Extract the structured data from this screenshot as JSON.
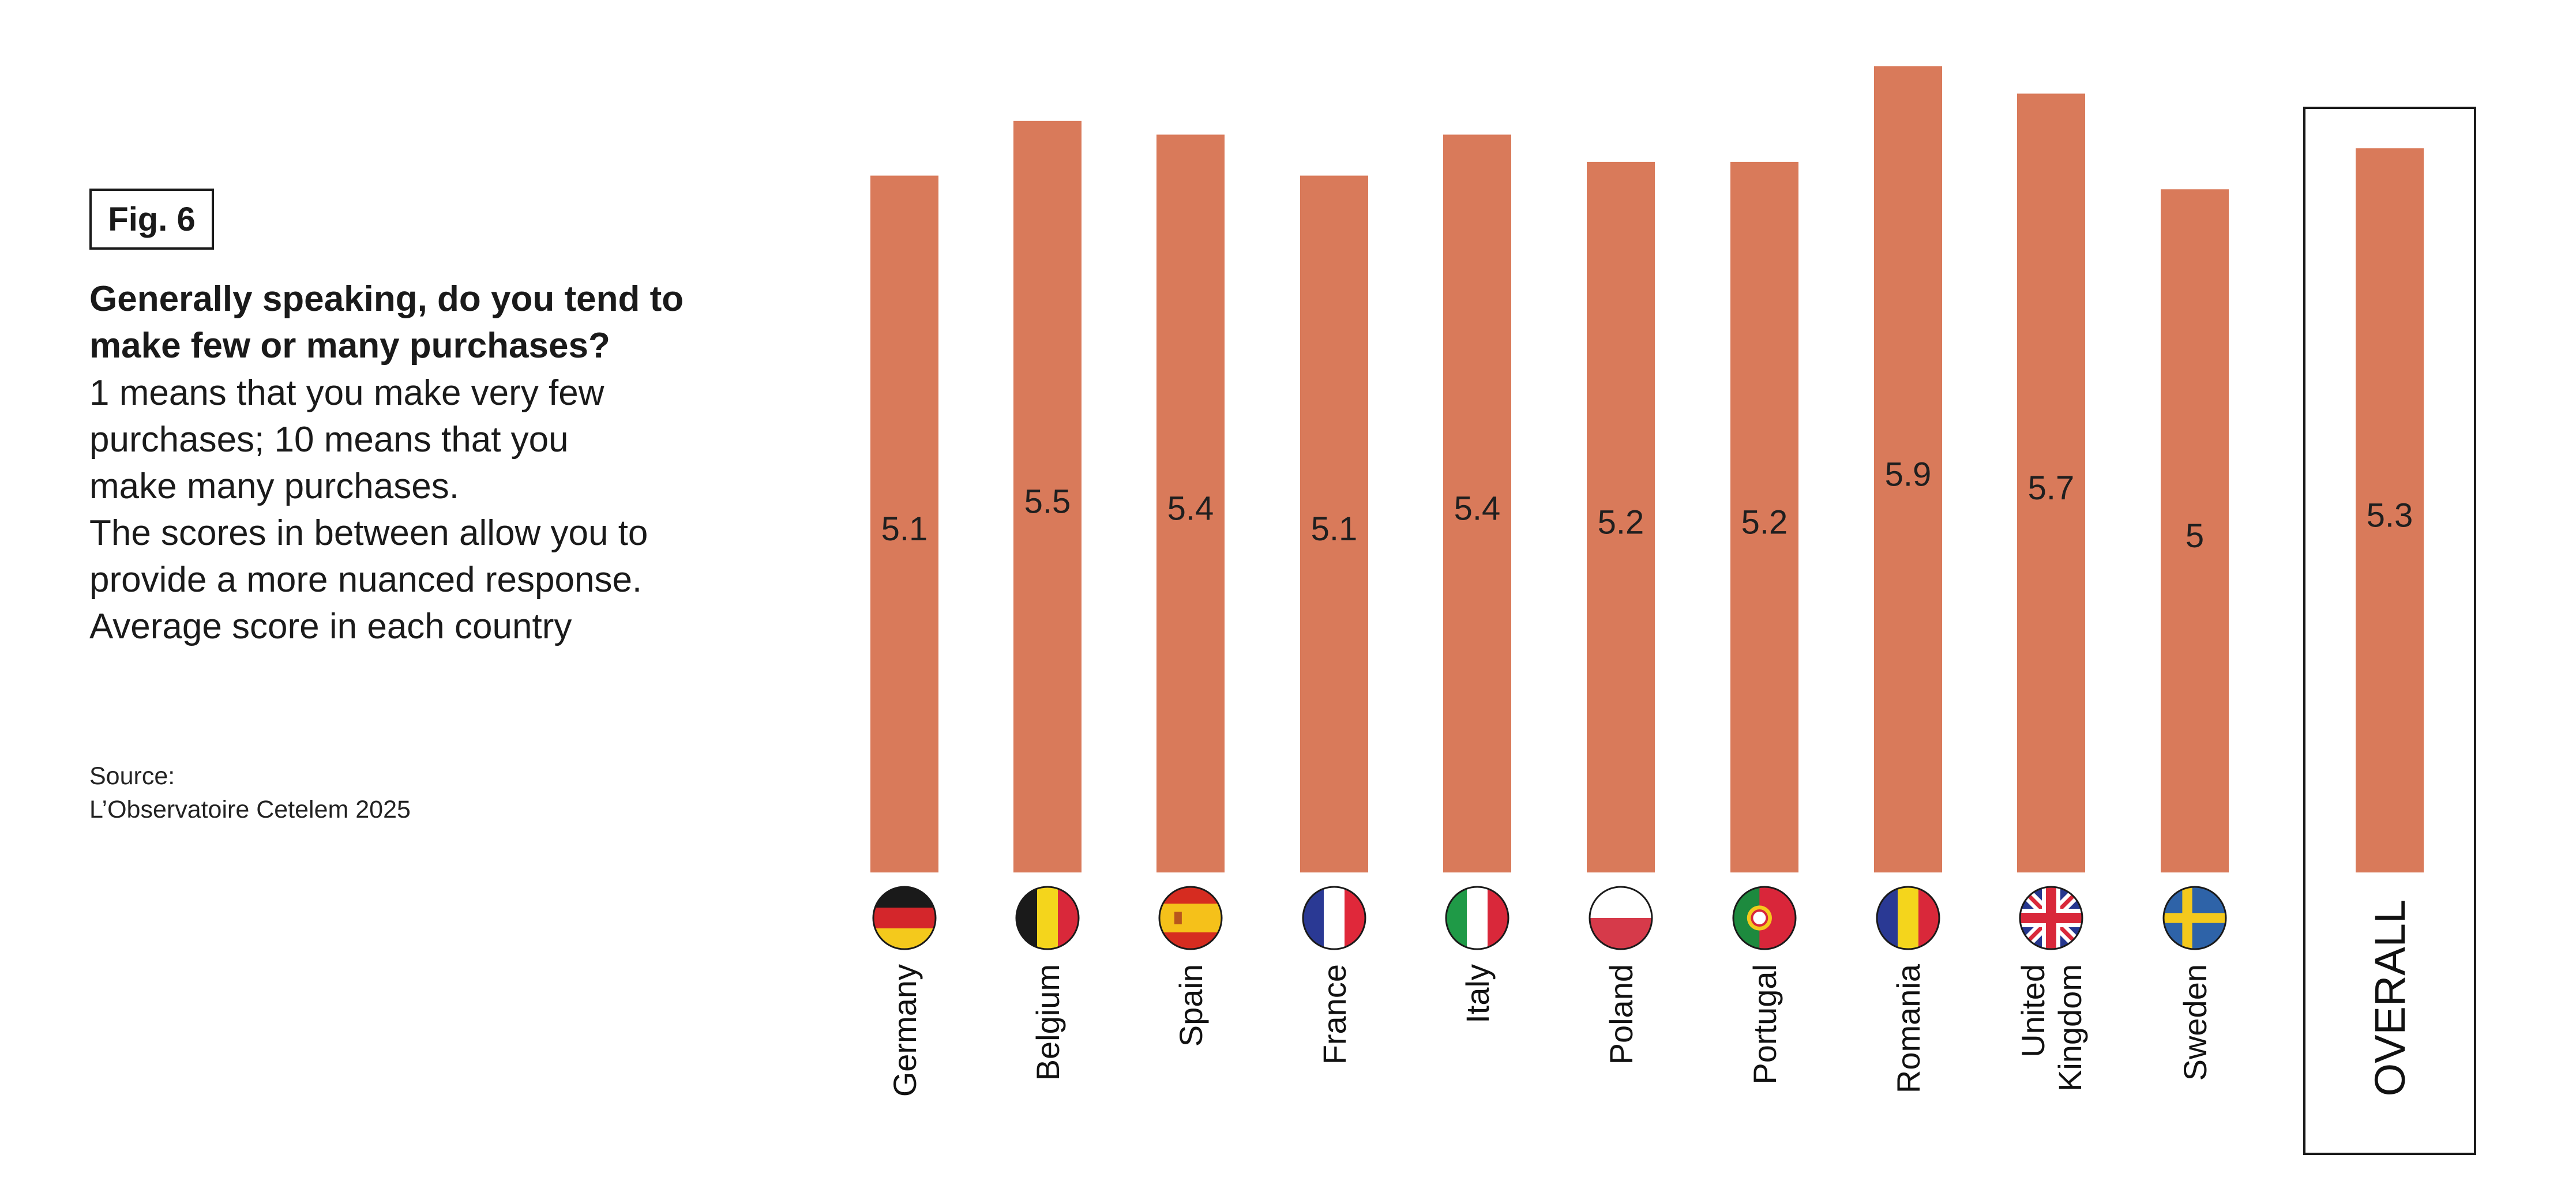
{
  "figure_label": "Fig. 6",
  "question": "Generally speaking, do you tend to make few or many purchases?",
  "description": "1 means that you make very few\npurchases; 10 means that you\nmake many purchases.\nThe scores in between allow you to\nprovide a more nuanced response.\nAverage score in each country",
  "source": "Source:\nL’Observatoire Cetelem 2025",
  "colors": {
    "bar": "#d97a5a",
    "frame": "#1a1a1a"
  },
  "chart_data": {
    "type": "bar",
    "title": "",
    "xlabel": "",
    "ylabel": "",
    "categories": [
      "Germany",
      "Belgium",
      "Spain",
      "France",
      "Italy",
      "Poland",
      "Portugal",
      "Romania",
      "United Kingdom",
      "Sweden",
      "OVERALL"
    ],
    "category_lines": [
      [
        "Germany"
      ],
      [
        "Belgium"
      ],
      [
        "Spain"
      ],
      [
        "France"
      ],
      [
        "Italy"
      ],
      [
        "Poland"
      ],
      [
        "Portugal"
      ],
      [
        "Romania"
      ],
      [
        "United",
        "Kingdom"
      ],
      [
        "Sweden"
      ],
      [
        "OVERALL"
      ]
    ],
    "values": [
      5.1,
      5.5,
      5.4,
      5.1,
      5.4,
      5.2,
      5.2,
      5.9,
      5.7,
      5,
      5.3
    ],
    "value_labels": [
      "5.1",
      "5.5",
      "5.4",
      "5.1",
      "5.4",
      "5.2",
      "5.2",
      "5.9",
      "5.7",
      "5",
      "5.3"
    ],
    "flags": [
      "germany-flag-icon",
      "belgium-flag-icon",
      "spain-flag-icon",
      "france-flag-icon",
      "italy-flag-icon",
      "poland-flag-icon",
      "portugal-flag-icon",
      "romania-flag-icon",
      "uk-flag-icon",
      "sweden-flag-icon",
      ""
    ],
    "highlighted_category": "OVERALL",
    "ylim": [
      0,
      5.9
    ],
    "grid": false,
    "legend": "none"
  }
}
